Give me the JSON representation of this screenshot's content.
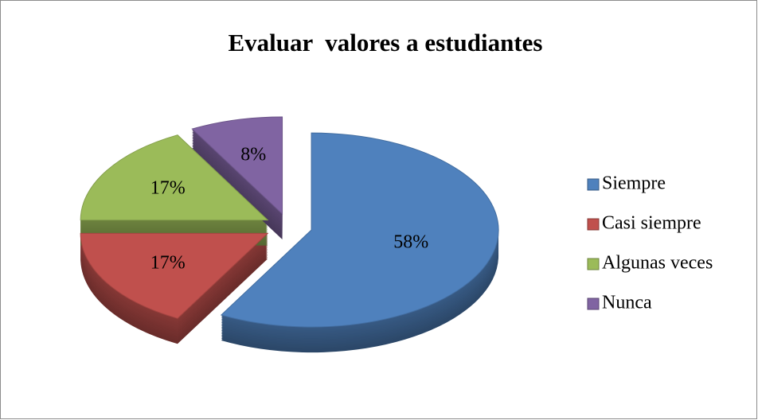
{
  "chart_data": {
    "type": "pie",
    "title": "Evaluar  valores a estudiantes",
    "categories": [
      "Siempre",
      "Casi siempre",
      "Algunas veces",
      "Nunca"
    ],
    "values": [
      58,
      17,
      17,
      8
    ],
    "value_labels": [
      "58%",
      "17%",
      "17%",
      "8%"
    ],
    "colors": [
      "#4f81bd",
      "#c0504d",
      "#9bbb59",
      "#8064a2"
    ],
    "legend": "right"
  }
}
